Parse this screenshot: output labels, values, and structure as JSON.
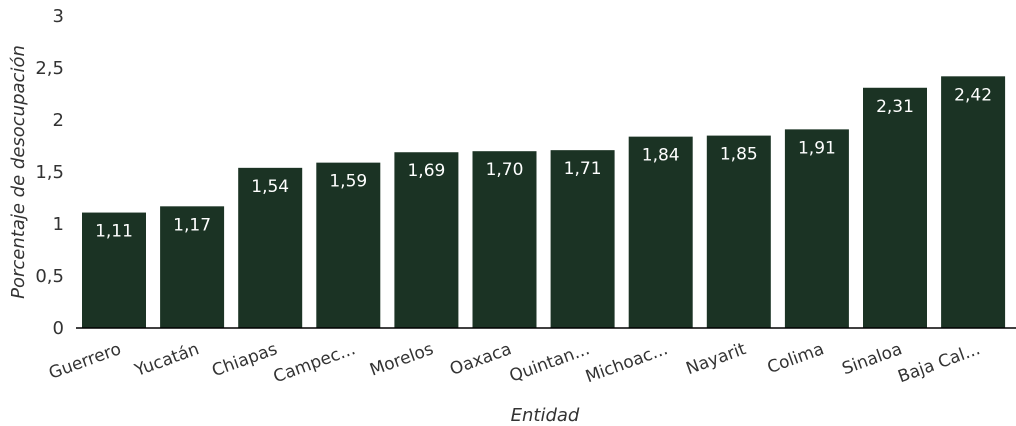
{
  "chart_data": {
    "type": "bar",
    "title": "",
    "xlabel": "Entidad",
    "ylabel": "Porcentaje de desocupación",
    "ylim": [
      0,
      3
    ],
    "yticks": [
      "0",
      "0,5",
      "1",
      "1,5",
      "2",
      "2,5",
      "3"
    ],
    "yticks_values": [
      0,
      0.5,
      1,
      1.5,
      2,
      2.5,
      3
    ],
    "categories": [
      "Guerrero",
      "Yucatán",
      "Chiapas",
      "Campec...",
      "Morelos",
      "Oaxaca",
      "Quintan...",
      "Michoac...",
      "Nayarit",
      "Colima",
      "Sinaloa",
      "Baja Cal..."
    ],
    "values": [
      1.11,
      1.17,
      1.54,
      1.59,
      1.69,
      1.7,
      1.71,
      1.84,
      1.85,
      1.91,
      2.31,
      2.42
    ],
    "data_labels": [
      "1,11",
      "1,17",
      "1,54",
      "1,59",
      "1,69",
      "1,70",
      "1,71",
      "1,84",
      "1,85",
      "1,91",
      "2,31",
      "2,42"
    ],
    "grid": false,
    "legend": "none",
    "bar_color": "#1b3324"
  }
}
